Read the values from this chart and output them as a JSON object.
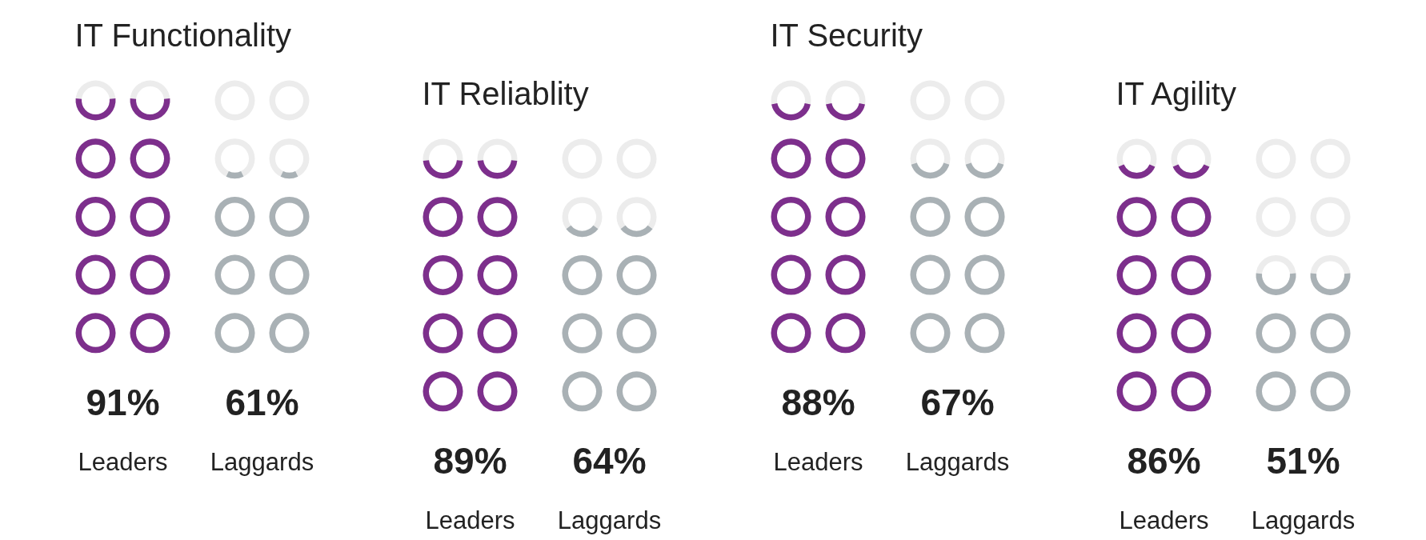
{
  "chart_data": [
    {
      "type": "other",
      "title": "IT Functionality",
      "categories": [
        "Leaders",
        "Laggards"
      ],
      "values": [
        91,
        61
      ],
      "value_labels": [
        "91%",
        "61%"
      ],
      "colors": [
        "#7d2f8c",
        "#a9b1b5"
      ]
    },
    {
      "type": "other",
      "title": "IT Reliablity",
      "categories": [
        "Leaders",
        "Laggards"
      ],
      "values": [
        89,
        64
      ],
      "value_labels": [
        "89%",
        "64%"
      ],
      "colors": [
        "#7d2f8c",
        "#a9b1b5"
      ]
    },
    {
      "type": "other",
      "title": "IT Security",
      "categories": [
        "Leaders",
        "Laggards"
      ],
      "values": [
        88,
        67
      ],
      "value_labels": [
        "88%",
        "67%"
      ],
      "colors": [
        "#7d2f8c",
        "#a9b1b5"
      ]
    },
    {
      "type": "other",
      "title": "IT Agility",
      "categories": [
        "Leaders",
        "Laggards"
      ],
      "values": [
        86,
        51
      ],
      "value_labels": [
        "86%",
        "51%"
      ],
      "colors": [
        "#7d2f8c",
        "#a9b1b5"
      ]
    }
  ]
}
